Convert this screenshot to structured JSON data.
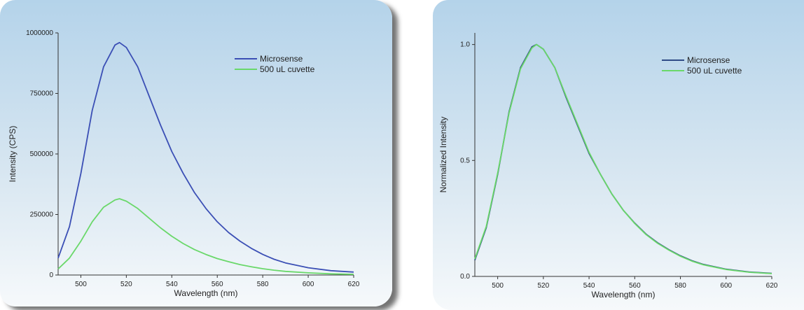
{
  "chart_data": [
    {
      "type": "line",
      "xlabel": "Wavelength (nm)",
      "ylabel": "Intensity (CPS)",
      "xlim": [
        490,
        620
      ],
      "ylim": [
        0,
        1000000
      ],
      "xticks": [
        500,
        520,
        540,
        560,
        580,
        600,
        620
      ],
      "yticks": [
        0,
        250000,
        500000,
        750000,
        1000000
      ],
      "legend_position": "top-right",
      "grid": false,
      "series": [
        {
          "name": "Microsense",
          "color": "#3b4fb5",
          "x": [
            490,
            495,
            500,
            505,
            510,
            515,
            517,
            520,
            525,
            530,
            535,
            540,
            545,
            550,
            555,
            560,
            565,
            570,
            575,
            580,
            585,
            590,
            600,
            610,
            620
          ],
          "y": [
            70000,
            200000,
            420000,
            680000,
            860000,
            950000,
            960000,
            940000,
            860000,
            740000,
            620000,
            510000,
            420000,
            340000,
            275000,
            220000,
            175000,
            140000,
            110000,
            85000,
            65000,
            50000,
            30000,
            18000,
            12000
          ]
        },
        {
          "name": "500 uL cuvette",
          "color": "#6ad86a",
          "x": [
            490,
            495,
            500,
            505,
            510,
            515,
            517,
            520,
            525,
            530,
            535,
            540,
            545,
            550,
            555,
            560,
            565,
            570,
            575,
            580,
            585,
            590,
            600,
            610,
            620
          ],
          "y": [
            25000,
            70000,
            140000,
            220000,
            280000,
            310000,
            315000,
            305000,
            275000,
            235000,
            195000,
            160000,
            130000,
            105000,
            85000,
            68000,
            55000,
            43000,
            34000,
            26000,
            20000,
            15000,
            9000,
            5000,
            3000
          ]
        }
      ]
    },
    {
      "type": "line",
      "xlabel": "Wavelength (nm)",
      "ylabel": "Normalized Intensity",
      "xlim": [
        490,
        620
      ],
      "ylim": [
        0,
        1.05
      ],
      "xticks": [
        500,
        520,
        540,
        560,
        580,
        600,
        620
      ],
      "yticks": [
        0.0,
        0.5,
        1.0
      ],
      "ytick_labels": [
        "0.0",
        "0.5",
        "1.0"
      ],
      "legend_position": "top-right",
      "grid": false,
      "series": [
        {
          "name": "Microsense",
          "color": "#2f4a86",
          "x": [
            490,
            495,
            500,
            505,
            510,
            515,
            517,
            520,
            525,
            530,
            535,
            540,
            545,
            550,
            555,
            560,
            565,
            570,
            575,
            580,
            585,
            590,
            600,
            610,
            620
          ],
          "y": [
            0.07,
            0.21,
            0.44,
            0.71,
            0.9,
            0.99,
            1.0,
            0.98,
            0.9,
            0.77,
            0.65,
            0.53,
            0.44,
            0.355,
            0.285,
            0.23,
            0.182,
            0.145,
            0.115,
            0.089,
            0.068,
            0.052,
            0.031,
            0.019,
            0.013
          ]
        },
        {
          "name": "500 uL cuvette",
          "color": "#6ad86a",
          "x": [
            490,
            495,
            500,
            505,
            510,
            515,
            517,
            520,
            525,
            530,
            535,
            540,
            545,
            550,
            555,
            560,
            565,
            570,
            575,
            580,
            585,
            590,
            600,
            610,
            620
          ],
          "y": [
            0.075,
            0.215,
            0.445,
            0.705,
            0.895,
            0.985,
            1.0,
            0.98,
            0.9,
            0.775,
            0.655,
            0.535,
            0.44,
            0.355,
            0.285,
            0.228,
            0.18,
            0.143,
            0.113,
            0.087,
            0.066,
            0.05,
            0.03,
            0.018,
            0.012
          ]
        }
      ]
    }
  ]
}
